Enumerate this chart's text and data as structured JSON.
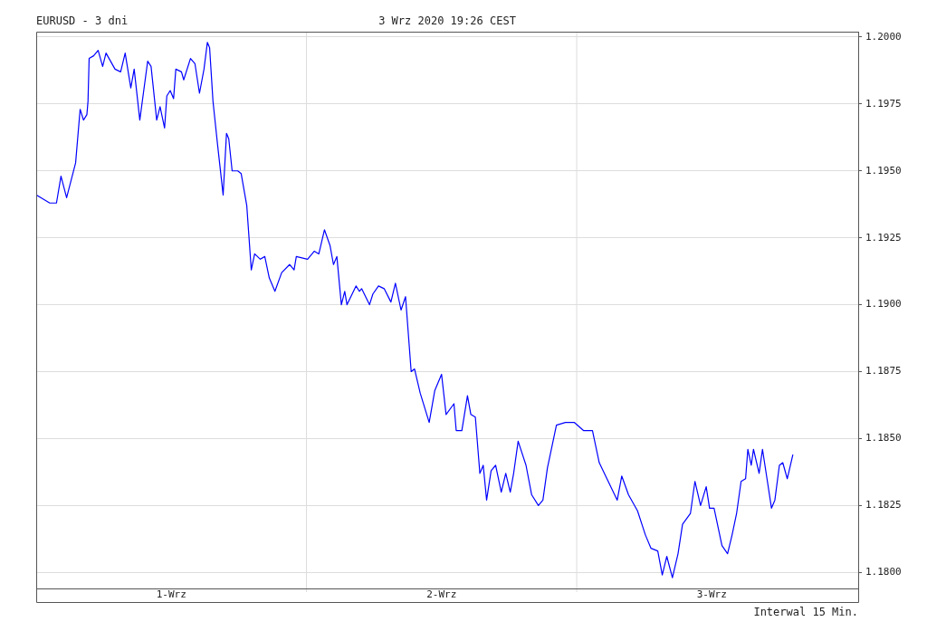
{
  "chart_data": {
    "type": "line",
    "title": "EURUSD - 3 dni",
    "subtitle": "3 Wrz 2020 19:26 CEST",
    "annotations": [
      "Interwal 15 Min."
    ],
    "xlim": [
      "2020-09-01T00:00",
      "2020-09-04T01:00"
    ],
    "xticks": [
      {
        "value": "2020-09-01T12:00",
        "label": "1-Wrz"
      },
      {
        "value": "2020-09-02T12:00",
        "label": "2-Wrz"
      },
      {
        "value": "2020-09-03T12:00",
        "label": "3-Wrz"
      }
    ],
    "ylim": [
      1.1794,
      1.2002
    ],
    "yticks": [
      {
        "value": 1.18,
        "label": "1.1800"
      },
      {
        "value": 1.1825,
        "label": "1.1825"
      },
      {
        "value": 1.185,
        "label": "1.1850"
      },
      {
        "value": 1.1875,
        "label": "1.1875"
      },
      {
        "value": 1.19,
        "label": "1.1900"
      },
      {
        "value": 1.1925,
        "label": "1.1925"
      },
      {
        "value": 1.195,
        "label": "1.1950"
      },
      {
        "value": 1.1975,
        "label": "1.1975"
      },
      {
        "value": 1.2,
        "label": "1.2000"
      }
    ],
    "grid": "y",
    "legend": false,
    "marker": "none",
    "line_style": "solid",
    "ref_lines": [
      {
        "axis": "x",
        "value": "2020-09-02T00:00",
        "color": "#dddddd"
      },
      {
        "axis": "x",
        "value": "2020-09-03T00:00",
        "color": "#dddddd"
      }
    ],
    "series": [
      {
        "color": "#0000ff",
        "x": [
          "2020-09-01T00:00",
          "2020-09-01T00:24",
          "2020-09-01T01:12",
          "2020-09-01T01:48",
          "2020-09-01T02:12",
          "2020-09-01T02:42",
          "2020-09-01T03:30",
          "2020-09-01T03:54",
          "2020-09-01T04:12",
          "2020-09-01T04:30",
          "2020-09-01T04:36",
          "2020-09-01T04:42",
          "2020-09-01T05:06",
          "2020-09-01T05:30",
          "2020-09-01T05:54",
          "2020-09-01T06:12",
          "2020-09-01T07:00",
          "2020-09-01T07:30",
          "2020-09-01T07:54",
          "2020-09-01T08:24",
          "2020-09-01T08:42",
          "2020-09-01T09:12",
          "2020-09-01T09:54",
          "2020-09-01T10:12",
          "2020-09-01T10:42",
          "2020-09-01T11:00",
          "2020-09-01T11:24",
          "2020-09-01T11:36",
          "2020-09-01T11:54",
          "2020-09-01T12:12",
          "2020-09-01T12:24",
          "2020-09-01T12:54",
          "2020-09-01T13:06",
          "2020-09-01T13:42",
          "2020-09-01T14:06",
          "2020-09-01T14:30",
          "2020-09-01T14:54",
          "2020-09-01T15:12",
          "2020-09-01T15:24",
          "2020-09-01T15:42",
          "2020-09-01T15:48",
          "2020-09-01T16:06",
          "2020-09-01T16:36",
          "2020-09-01T16:54",
          "2020-09-01T17:06",
          "2020-09-01T17:24",
          "2020-09-01T17:54",
          "2020-09-01T18:12",
          "2020-09-01T18:42",
          "2020-09-01T19:06",
          "2020-09-01T19:24",
          "2020-09-01T19:54",
          "2020-09-01T20:18",
          "2020-09-01T20:42",
          "2020-09-01T21:12",
          "2020-09-01T21:48",
          "2020-09-01T22:30",
          "2020-09-01T22:54",
          "2020-09-01T23:06",
          "2020-09-02T00:06",
          "2020-09-02T00:42",
          "2020-09-02T01:06",
          "2020-09-02T01:36",
          "2020-09-02T02:06",
          "2020-09-02T02:24",
          "2020-09-02T02:42",
          "2020-09-02T03:06",
          "2020-09-02T03:24",
          "2020-09-02T03:36",
          "2020-09-02T04:24",
          "2020-09-02T04:42",
          "2020-09-02T04:54",
          "2020-09-02T05:36",
          "2020-09-02T05:54",
          "2020-09-02T06:24",
          "2020-09-02T06:54",
          "2020-09-02T07:30",
          "2020-09-02T07:54",
          "2020-09-02T08:24",
          "2020-09-02T08:48",
          "2020-09-02T09:18",
          "2020-09-02T09:36",
          "2020-09-02T10:06",
          "2020-09-02T10:54",
          "2020-09-02T11:24",
          "2020-09-02T12:00",
          "2020-09-02T12:24",
          "2020-09-02T13:06",
          "2020-09-02T13:18",
          "2020-09-02T13:48",
          "2020-09-02T14:18",
          "2020-09-02T14:36",
          "2020-09-02T15:00",
          "2020-09-02T15:24",
          "2020-09-02T15:42",
          "2020-09-02T16:00",
          "2020-09-02T16:24",
          "2020-09-02T16:48",
          "2020-09-02T17:18",
          "2020-09-02T17:42",
          "2020-09-02T18:06",
          "2020-09-02T18:24",
          "2020-09-02T18:48",
          "2020-09-02T19:30",
          "2020-09-02T20:00",
          "2020-09-02T20:36",
          "2020-09-02T21:00",
          "2020-09-02T21:24",
          "2020-09-02T22:12",
          "2020-09-02T23:00",
          "2020-09-02T23:48",
          "2020-09-03T00:36",
          "2020-09-03T01:24",
          "2020-09-03T02:00",
          "2020-09-03T02:48",
          "2020-09-03T03:36",
          "2020-09-03T04:00",
          "2020-09-03T04:36",
          "2020-09-03T05:24",
          "2020-09-03T06:06",
          "2020-09-03T06:36",
          "2020-09-03T07:12",
          "2020-09-03T07:36",
          "2020-09-03T08:00",
          "2020-09-03T08:30",
          "2020-09-03T09:00",
          "2020-09-03T09:24",
          "2020-09-03T10:06",
          "2020-09-03T10:30",
          "2020-09-03T11:00",
          "2020-09-03T11:30",
          "2020-09-03T11:48",
          "2020-09-03T12:12",
          "2020-09-03T12:54",
          "2020-09-03T13:24",
          "2020-09-03T13:48",
          "2020-09-03T14:12",
          "2020-09-03T14:36",
          "2020-09-03T15:00",
          "2020-09-03T15:12",
          "2020-09-03T15:30",
          "2020-09-03T15:42",
          "2020-09-03T16:12",
          "2020-09-03T16:30",
          "2020-09-03T16:54",
          "2020-09-03T17:18",
          "2020-09-03T17:36",
          "2020-09-03T18:00",
          "2020-09-03T18:18",
          "2020-09-03T18:42",
          "2020-09-03T19:12"
        ],
        "values": [
          1.1941,
          1.194,
          1.1938,
          1.1938,
          1.1948,
          1.194,
          1.1953,
          1.1973,
          1.1969,
          1.1971,
          1.1976,
          1.1992,
          1.1993,
          1.1995,
          1.1989,
          1.1994,
          1.1988,
          1.1987,
          1.1994,
          1.1981,
          1.1988,
          1.1969,
          1.1991,
          1.1989,
          1.1969,
          1.1974,
          1.1966,
          1.1978,
          1.198,
          1.1977,
          1.1988,
          1.1987,
          1.1984,
          1.1992,
          1.199,
          1.1979,
          1.1988,
          1.1998,
          1.1996,
          1.1976,
          1.1972,
          1.196,
          1.1941,
          1.1964,
          1.1962,
          1.195,
          1.195,
          1.1949,
          1.1937,
          1.1913,
          1.1919,
          1.1917,
          1.1918,
          1.191,
          1.1905,
          1.1912,
          1.1915,
          1.1913,
          1.1918,
          1.1917,
          1.192,
          1.1919,
          1.1928,
          1.1922,
          1.1915,
          1.1918,
          1.19,
          1.1905,
          1.19,
          1.1907,
          1.1905,
          1.1906,
          1.19,
          1.1904,
          1.1907,
          1.1906,
          1.1901,
          1.1908,
          1.1898,
          1.1903,
          1.1875,
          1.1876,
          1.1867,
          1.1856,
          1.1868,
          1.1874,
          1.1859,
          1.1863,
          1.1853,
          1.1853,
          1.1866,
          1.1859,
          1.1858,
          1.1837,
          1.184,
          1.1827,
          1.1838,
          1.184,
          1.183,
          1.1837,
          1.183,
          1.1837,
          1.1849,
          1.184,
          1.1829,
          1.1825,
          1.1827,
          1.1839,
          1.1855,
          1.1856,
          1.1856,
          1.1853,
          1.1853,
          1.1841,
          1.1834,
          1.1827,
          1.1836,
          1.1829,
          1.1823,
          1.1814,
          1.1809,
          1.1808,
          1.1799,
          1.1806,
          1.1798,
          1.1807,
          1.1818,
          1.1822,
          1.1834,
          1.1825,
          1.1832,
          1.1824,
          1.1824,
          1.181,
          1.1807,
          1.1814,
          1.1822,
          1.1834,
          1.1835,
          1.1846,
          1.184,
          1.1846,
          1.1837,
          1.1846,
          1.1835,
          1.1824,
          1.1827,
          1.184,
          1.1841,
          1.1835,
          1.1844
        ]
      }
    ]
  }
}
